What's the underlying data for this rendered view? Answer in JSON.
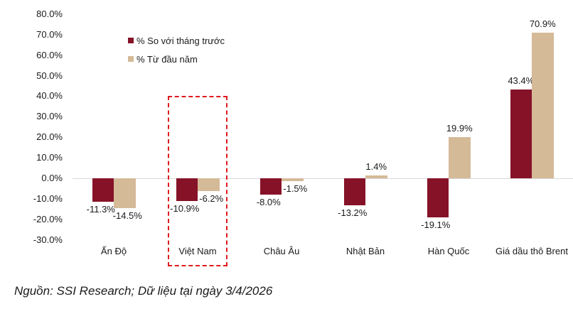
{
  "chart_data": {
    "type": "bar",
    "title": "",
    "xlabel": "",
    "ylabel": "",
    "ylim": [
      -30,
      80
    ],
    "yticks": [
      "80.0%",
      "70.0%",
      "60.0%",
      "50.0%",
      "40.0%",
      "30.0%",
      "20.0%",
      "10.0%",
      "0.0%",
      "-10.0%",
      "-20.0%",
      "-30.0%"
    ],
    "categories": [
      "Ấn Độ",
      "Việt Nam",
      "Châu Âu",
      "Nhật Bản",
      "Hàn Quốc",
      "Giá dầu thô Brent"
    ],
    "series": [
      {
        "name": "% So với tháng trước",
        "color": "#861228",
        "values": [
          -11.3,
          -10.9,
          -8.0,
          -13.2,
          -19.1,
          43.4
        ],
        "labels": [
          "-11.3%",
          "-10.9%",
          "-8.0%",
          "-13.2%",
          "-19.1%",
          "43.4%"
        ]
      },
      {
        "name": "% Từ đầu năm",
        "color": "#D5BA98",
        "values": [
          -14.5,
          -6.2,
          -1.5,
          1.4,
          19.9,
          70.9
        ],
        "labels": [
          "-14.5%",
          "-6.2%",
          "-1.5%",
          "1.4%",
          "19.9%",
          "70.9%"
        ]
      }
    ],
    "legend_position": "top-left",
    "grid": false,
    "annotations": [
      {
        "type": "dashed-box",
        "target": "Việt Nam",
        "color": "#E0191E"
      }
    ]
  },
  "legend": {
    "item0": "% So với tháng trước",
    "item1": "% Từ đầu năm"
  },
  "source": "Nguồn: SSI Research; Dữ liệu tại ngày 3/4/2026"
}
